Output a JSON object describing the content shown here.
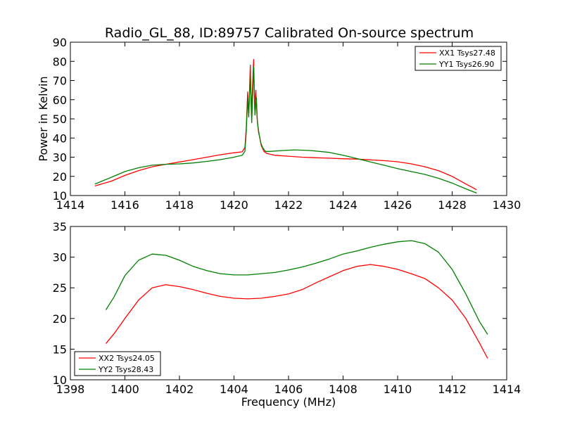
{
  "figure": {
    "title": "Radio_GL_88, ID:89757 Calibrated On-source spectrum",
    "background": "#ffffff"
  },
  "chart_data": [
    {
      "type": "line",
      "title": "Radio_GL_88, ID:89757 Calibrated On-source spectrum",
      "xlabel": "",
      "ylabel": "Power in Kelvin",
      "xlim": [
        1414,
        1430
      ],
      "ylim": [
        10,
        90
      ],
      "x_ticks": [
        "1414",
        "1416",
        "1418",
        "1420",
        "1422",
        "1424",
        "1426",
        "1428",
        "1430"
      ],
      "y_ticks": [
        "10",
        "20",
        "30",
        "40",
        "50",
        "60",
        "70",
        "80",
        "90"
      ],
      "grid": false,
      "legend_position": "upper right",
      "series": [
        {
          "name": "XX1 Tsys27.48",
          "color": "#ff0000",
          "points": [
            [
              1414.9,
              15
            ],
            [
              1415.5,
              17.5
            ],
            [
              1416,
              20.5
            ],
            [
              1416.5,
              23
            ],
            [
              1417,
              25
            ],
            [
              1417.5,
              26.3
            ],
            [
              1418,
              27.5
            ],
            [
              1418.5,
              28.7
            ],
            [
              1419,
              30
            ],
            [
              1419.5,
              31.3
            ],
            [
              1420,
              32.3
            ],
            [
              1420.3,
              32.8
            ],
            [
              1420.4,
              35
            ],
            [
              1420.45,
              45
            ],
            [
              1420.5,
              64
            ],
            [
              1420.54,
              52
            ],
            [
              1420.6,
              78
            ],
            [
              1420.64,
              52
            ],
            [
              1420.72,
              81
            ],
            [
              1420.76,
              55
            ],
            [
              1420.8,
              65
            ],
            [
              1420.85,
              50
            ],
            [
              1420.9,
              43
            ],
            [
              1420.95,
              40
            ],
            [
              1421,
              36
            ],
            [
              1421.1,
              33
            ],
            [
              1421.2,
              32
            ],
            [
              1421.5,
              31
            ],
            [
              1422,
              30.5
            ],
            [
              1422.5,
              30
            ],
            [
              1423,
              29.7
            ],
            [
              1423.5,
              29.5
            ],
            [
              1424,
              29.2
            ],
            [
              1424.5,
              29
            ],
            [
              1425,
              28.6
            ],
            [
              1425.5,
              28.2
            ],
            [
              1426,
              27.6
            ],
            [
              1426.5,
              26.5
            ],
            [
              1427,
              25
            ],
            [
              1427.5,
              23
            ],
            [
              1428,
              20
            ],
            [
              1428.5,
              16
            ],
            [
              1428.9,
              13
            ]
          ]
        },
        {
          "name": "YY1 Tsys26.90",
          "color": "#008000",
          "points": [
            [
              1414.9,
              16
            ],
            [
              1415.5,
              19.5
            ],
            [
              1416,
              22.5
            ],
            [
              1416.5,
              24.5
            ],
            [
              1417,
              25.8
            ],
            [
              1417.5,
              26.3
            ],
            [
              1418,
              26.5
            ],
            [
              1418.5,
              27
            ],
            [
              1419,
              27.8
            ],
            [
              1419.5,
              28.7
            ],
            [
              1420,
              30
            ],
            [
              1420.3,
              31
            ],
            [
              1420.4,
              33
            ],
            [
              1420.45,
              43
            ],
            [
              1420.5,
              61
            ],
            [
              1420.54,
              51
            ],
            [
              1420.6,
              73
            ],
            [
              1420.65,
              48
            ],
            [
              1420.72,
              77
            ],
            [
              1420.77,
              52
            ],
            [
              1420.82,
              61
            ],
            [
              1420.86,
              48
            ],
            [
              1420.92,
              42
            ],
            [
              1420.97,
              38
            ],
            [
              1421.05,
              35
            ],
            [
              1421.15,
              33
            ],
            [
              1421.3,
              33
            ],
            [
              1421.8,
              33.5
            ],
            [
              1422.2,
              33.8
            ],
            [
              1422.8,
              33.5
            ],
            [
              1423.5,
              32.5
            ],
            [
              1424,
              31
            ],
            [
              1424.5,
              29.3
            ],
            [
              1425,
              27.5
            ],
            [
              1425.5,
              25.8
            ],
            [
              1426,
              24
            ],
            [
              1426.5,
              22.5
            ],
            [
              1427,
              21
            ],
            [
              1427.5,
              19
            ],
            [
              1428,
              16.5
            ],
            [
              1428.5,
              13.5
            ],
            [
              1428.9,
              11.3
            ]
          ]
        }
      ]
    },
    {
      "type": "line",
      "title": "",
      "xlabel": "Frequency (MHz)",
      "ylabel": "",
      "xlim": [
        1398,
        1414
      ],
      "ylim": [
        10,
        35
      ],
      "x_ticks": [
        "1398",
        "1400",
        "1402",
        "1404",
        "1406",
        "1408",
        "1410",
        "1412",
        "1414"
      ],
      "y_ticks": [
        "10",
        "15",
        "20",
        "25",
        "30",
        "35"
      ],
      "grid": false,
      "legend_position": "lower left",
      "series": [
        {
          "name": "XX2 Tsys24.05",
          "color": "#ff0000",
          "points": [
            [
              1399.3,
              15.9
            ],
            [
              1399.6,
              17.5
            ],
            [
              1400,
              20
            ],
            [
              1400.5,
              23
            ],
            [
              1401,
              25
            ],
            [
              1401.5,
              25.5
            ],
            [
              1402,
              25.2
            ],
            [
              1402.5,
              24.7
            ],
            [
              1403,
              24.1
            ],
            [
              1403.5,
              23.6
            ],
            [
              1404,
              23.3
            ],
            [
              1404.5,
              23.2
            ],
            [
              1405,
              23.3
            ],
            [
              1405.5,
              23.6
            ],
            [
              1406,
              24
            ],
            [
              1406.5,
              24.7
            ],
            [
              1407,
              25.8
            ],
            [
              1407.5,
              26.8
            ],
            [
              1408,
              27.8
            ],
            [
              1408.5,
              28.5
            ],
            [
              1409,
              28.8
            ],
            [
              1409.5,
              28.5
            ],
            [
              1410,
              28.0
            ],
            [
              1410.5,
              27.3
            ],
            [
              1411,
              26.5
            ],
            [
              1411.5,
              25
            ],
            [
              1412,
              23
            ],
            [
              1412.5,
              20
            ],
            [
              1413,
              16
            ],
            [
              1413.3,
              13.5
            ]
          ]
        },
        {
          "name": "YY2 Tsys28.43",
          "color": "#008000",
          "points": [
            [
              1399.3,
              21.4
            ],
            [
              1399.6,
              23.5
            ],
            [
              1400,
              27
            ],
            [
              1400.5,
              29.5
            ],
            [
              1401,
              30.5
            ],
            [
              1401.5,
              30.3
            ],
            [
              1402,
              29.5
            ],
            [
              1402.5,
              28.5
            ],
            [
              1403,
              27.8
            ],
            [
              1403.5,
              27.3
            ],
            [
              1404,
              27.1
            ],
            [
              1404.5,
              27.1
            ],
            [
              1405,
              27.3
            ],
            [
              1405.5,
              27.5
            ],
            [
              1406,
              27.9
            ],
            [
              1406.5,
              28.4
            ],
            [
              1407,
              29
            ],
            [
              1407.5,
              29.7
            ],
            [
              1408,
              30.5
            ],
            [
              1408.5,
              31
            ],
            [
              1409,
              31.6
            ],
            [
              1409.5,
              32.1
            ],
            [
              1410,
              32.5
            ],
            [
              1410.5,
              32.7
            ],
            [
              1411,
              32.2
            ],
            [
              1411.5,
              30.8
            ],
            [
              1412,
              28
            ],
            [
              1412.5,
              24
            ],
            [
              1413,
              19.5
            ],
            [
              1413.3,
              17.4
            ]
          ]
        }
      ]
    }
  ]
}
